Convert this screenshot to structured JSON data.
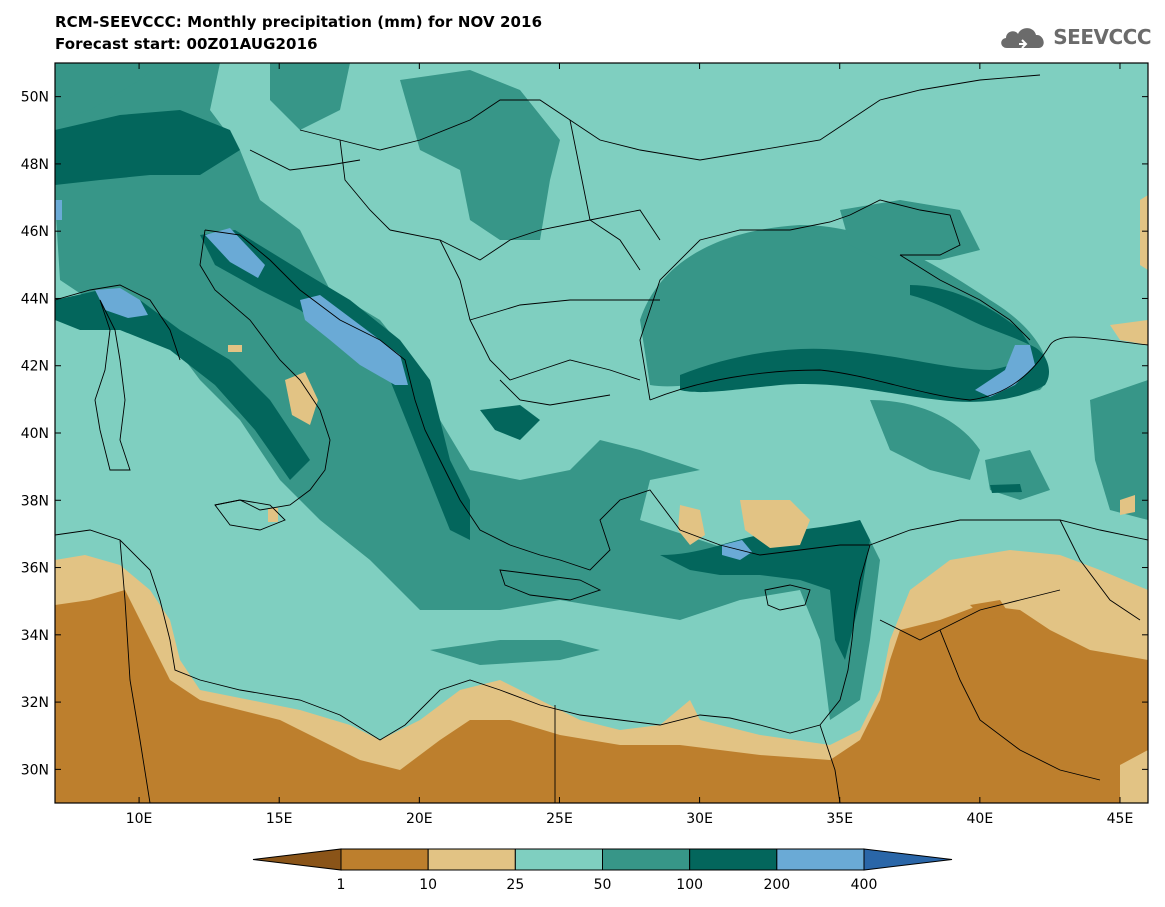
{
  "header": {
    "title": "RCM-SEEVCCC: Monthly precipitation (mm) for NOV 2016",
    "subtitle": "Forecast start: 00Z01AUG2016",
    "logo_text": "SEEVCCC",
    "logo_icon": "cloud-icon"
  },
  "map": {
    "lon_range": [
      7,
      46
    ],
    "lat_range": [
      29,
      51
    ],
    "x_ticks": [
      {
        "value": 10,
        "label": "10E"
      },
      {
        "value": 15,
        "label": "15E"
      },
      {
        "value": 20,
        "label": "20E"
      },
      {
        "value": 25,
        "label": "25E"
      },
      {
        "value": 30,
        "label": "30E"
      },
      {
        "value": 35,
        "label": "35E"
      },
      {
        "value": 40,
        "label": "40E"
      },
      {
        "value": 45,
        "label": "45E"
      }
    ],
    "y_ticks": [
      {
        "value": 30,
        "label": "30N"
      },
      {
        "value": 32,
        "label": "32N"
      },
      {
        "value": 34,
        "label": "34N"
      },
      {
        "value": 36,
        "label": "36N"
      },
      {
        "value": 38,
        "label": "38N"
      },
      {
        "value": 40,
        "label": "40N"
      },
      {
        "value": 42,
        "label": "42N"
      },
      {
        "value": 44,
        "label": "44N"
      },
      {
        "value": 46,
        "label": "46N"
      },
      {
        "value": 48,
        "label": "48N"
      },
      {
        "value": 50,
        "label": "50N"
      }
    ]
  },
  "colorbar": {
    "colors": [
      "#8a5418",
      "#bd7f2d",
      "#e2c384",
      "#7fcfc0",
      "#379688",
      "#03665c",
      "#6aaad6",
      "#2a66a8"
    ],
    "labels": [
      "1",
      "10",
      "25",
      "50",
      "100",
      "200",
      "400"
    ]
  }
}
